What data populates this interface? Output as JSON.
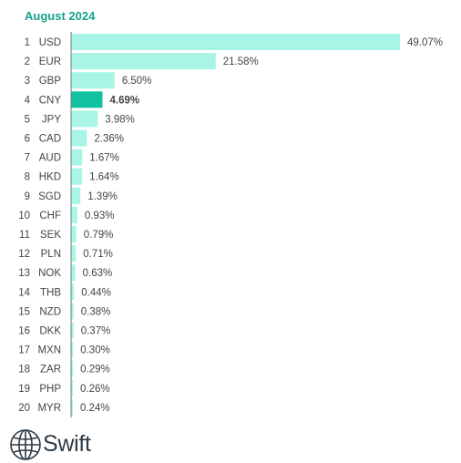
{
  "chart_data": {
    "type": "bar",
    "orientation": "horizontal",
    "title": "August 2024",
    "xlim": [
      0,
      49.07
    ],
    "highlight": "CNY",
    "colors": {
      "bar": "#a8f5e6",
      "highlight": "#14c29f",
      "axis": "#6b7b7b",
      "title": "#14a38b"
    },
    "ranks": [
      "1",
      "2",
      "3",
      "4",
      "5",
      "6",
      "7",
      "8",
      "9",
      "10",
      "11",
      "12",
      "13",
      "14",
      "15",
      "16",
      "17",
      "18",
      "19",
      "20"
    ],
    "categories": [
      "USD",
      "EUR",
      "GBP",
      "CNY",
      "JPY",
      "CAD",
      "AUD",
      "HKD",
      "SGD",
      "CHF",
      "SEK",
      "PLN",
      "NOK",
      "THB",
      "NZD",
      "DKK",
      "MXN",
      "ZAR",
      "PHP",
      "MYR"
    ],
    "values": [
      49.07,
      21.58,
      6.5,
      4.69,
      3.98,
      2.36,
      1.67,
      1.64,
      1.39,
      0.93,
      0.79,
      0.71,
      0.63,
      0.44,
      0.38,
      0.37,
      0.3,
      0.29,
      0.26,
      0.24
    ],
    "value_labels": [
      "49.07%",
      "21.58%",
      "6.50%",
      "4.69%",
      "3.98%",
      "2.36%",
      "1.67%",
      "1.64%",
      "1.39%",
      "0.93%",
      "0.79%",
      "0.71%",
      "0.63%",
      "0.44%",
      "0.38%",
      "0.37%",
      "0.30%",
      "0.29%",
      "0.26%",
      "0.24%"
    ]
  },
  "brand": {
    "name": "Swift",
    "logo_icon": "globe-icon"
  }
}
